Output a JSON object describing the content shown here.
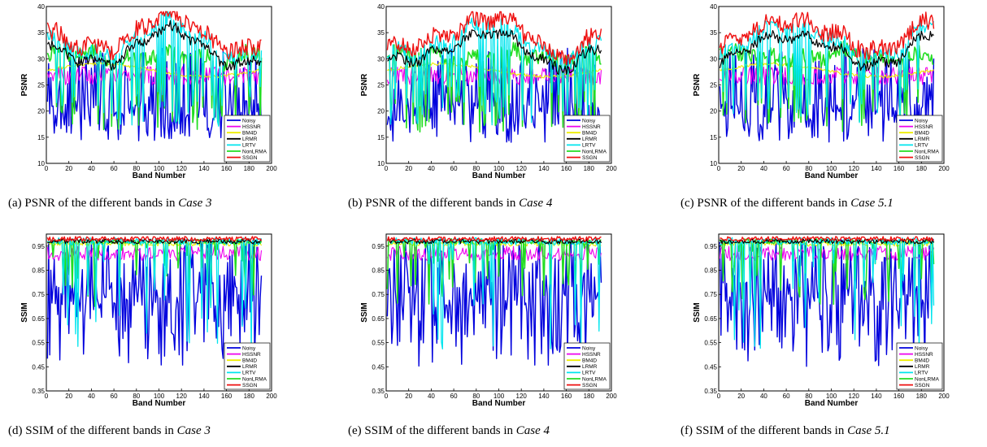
{
  "chart_data": [
    {
      "type": "line",
      "metric": "psnr",
      "seed": 3,
      "xlabel": "Band Number",
      "ylabel": "PSNR",
      "xlim": [
        0,
        200
      ],
      "ylim": [
        10,
        40
      ],
      "xticks": [
        "0",
        "20",
        "40",
        "60",
        "80",
        "100",
        "120",
        "140",
        "160",
        "180",
        "200"
      ],
      "yticks": [
        "10",
        "15",
        "20",
        "25",
        "30",
        "35",
        "40"
      ],
      "legend": [
        "Noisy",
        "HSSNR",
        "BM4D",
        "LRMR",
        "LRTV",
        "NonLRMA",
        "SSGN"
      ],
      "legend_position": "lower-right",
      "caption_prefix": "(a) PSNR of the different bands in ",
      "caption_case": "Case 3"
    },
    {
      "type": "line",
      "metric": "psnr",
      "seed": 4,
      "xlabel": "Band Number",
      "ylabel": "PSNR",
      "xlim": [
        0,
        200
      ],
      "ylim": [
        10,
        40
      ],
      "xticks": [
        "0",
        "20",
        "40",
        "60",
        "80",
        "100",
        "120",
        "140",
        "160",
        "180",
        "200"
      ],
      "yticks": [
        "10",
        "15",
        "20",
        "25",
        "30",
        "35",
        "40"
      ],
      "legend": [
        "Noisy",
        "HSSNR",
        "BM4D",
        "LRMR",
        "LRTV",
        "NonLRMA",
        "SSGN"
      ],
      "legend_position": "lower-right",
      "caption_prefix": "(b) PSNR of the different bands in ",
      "caption_case": "Case 4"
    },
    {
      "type": "line",
      "metric": "psnr",
      "seed": 5,
      "xlabel": "Band Number",
      "ylabel": "PSNR",
      "xlim": [
        0,
        200
      ],
      "ylim": [
        10,
        40
      ],
      "xticks": [
        "0",
        "20",
        "40",
        "60",
        "80",
        "100",
        "120",
        "140",
        "160",
        "180",
        "200"
      ],
      "yticks": [
        "10",
        "15",
        "20",
        "25",
        "30",
        "35",
        "40"
      ],
      "legend": [
        "Noisy",
        "HSSNR",
        "BM4D",
        "LRMR",
        "LRTV",
        "NonLRMA",
        "SSGN"
      ],
      "legend_position": "lower-right",
      "caption_prefix": "(c) PSNR of the different bands in ",
      "caption_case": "Case 5.1"
    },
    {
      "type": "line",
      "metric": "ssim",
      "seed": 6,
      "xlabel": "Band Number",
      "ylabel": "SSIM",
      "xlim": [
        0,
        200
      ],
      "ylim": [
        0.35,
        1.0
      ],
      "xticks": [
        "0",
        "20",
        "40",
        "60",
        "80",
        "100",
        "120",
        "140",
        "160",
        "180",
        "200"
      ],
      "yticks": [
        "0.35",
        "0.45",
        "0.55",
        "0.65",
        "0.75",
        "0.85",
        "0.95"
      ],
      "legend": [
        "Noisy",
        "HSSNR",
        "BM4D",
        "LRMR",
        "LRTV",
        "NonLRMA",
        "SSGN"
      ],
      "legend_position": "lower-right",
      "caption_prefix": "(d) SSIM of the different bands in ",
      "caption_case": "Case 3"
    },
    {
      "type": "line",
      "metric": "ssim",
      "seed": 7,
      "xlabel": "Band Number",
      "ylabel": "SSIM",
      "xlim": [
        0,
        200
      ],
      "ylim": [
        0.35,
        1.0
      ],
      "xticks": [
        "0",
        "20",
        "40",
        "60",
        "80",
        "100",
        "120",
        "140",
        "160",
        "180",
        "200"
      ],
      "yticks": [
        "0.35",
        "0.45",
        "0.55",
        "0.65",
        "0.75",
        "0.85",
        "0.95"
      ],
      "legend": [
        "Noisy",
        "HSSNR",
        "BM4D",
        "LRMR",
        "LRTV",
        "NonLRMA",
        "SSGN"
      ],
      "legend_position": "lower-right",
      "caption_prefix": "(e) SSIM of the different bands in ",
      "caption_case": "Case 4"
    },
    {
      "type": "line",
      "metric": "ssim",
      "seed": 8,
      "xlabel": "Band Number",
      "ylabel": "SSIM",
      "xlim": [
        0,
        200
      ],
      "ylim": [
        0.35,
        1.0
      ],
      "xticks": [
        "0",
        "20",
        "40",
        "60",
        "80",
        "100",
        "120",
        "140",
        "160",
        "180",
        "200"
      ],
      "yticks": [
        "0.35",
        "0.45",
        "0.55",
        "0.65",
        "0.75",
        "0.85",
        "0.95"
      ],
      "legend": [
        "Noisy",
        "HSSNR",
        "BM4D",
        "LRMR",
        "LRTV",
        "NonLRMA",
        "SSGN"
      ],
      "legend_position": "lower-right",
      "caption_prefix": "(f) SSIM of the different bands in ",
      "caption_case": "Case 5.1"
    }
  ],
  "series_colors": {
    "Noisy": "#0000dd",
    "HSSNR": "#ee00ee",
    "BM4D": "#eeee00",
    "LRMR": "#000000",
    "LRTV": "#00e5ee",
    "NonLRMA": "#22dd22",
    "SSGN": "#ee1111"
  }
}
